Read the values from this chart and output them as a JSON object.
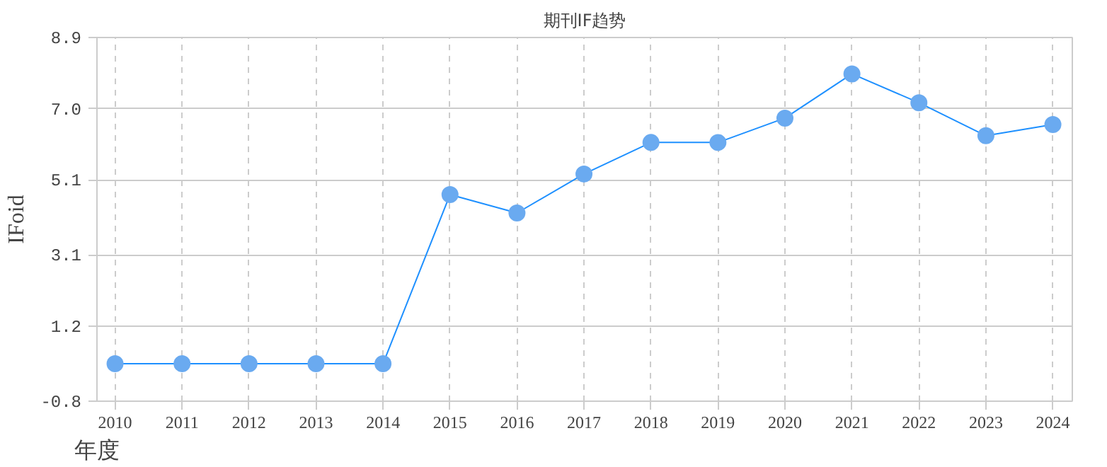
{
  "chart_data": {
    "type": "line",
    "title": "期刊IF趋势",
    "xlabel": "年度",
    "ylabel": "IFoid",
    "categories": [
      "2010",
      "2011",
      "2012",
      "2013",
      "2014",
      "2015",
      "2016",
      "2017",
      "2018",
      "2019",
      "2020",
      "2021",
      "2022",
      "2023",
      "2024"
    ],
    "series": [
      {
        "color": "#1e90ff",
        "values": [
          0.2,
          0.2,
          0.2,
          0.2,
          0.2,
          4.71,
          4.22,
          5.26,
          6.1,
          6.1,
          6.75,
          7.93,
          7.16,
          6.28,
          6.58
        ]
      }
    ],
    "ylim": [
      -0.8,
      8.9
    ],
    "yticks": [
      -0.8,
      1.2,
      3.1,
      5.1,
      {
        "value": 7.0,
        "label": "7.0"
      },
      8.9
    ],
    "grid": true,
    "marker": "circle",
    "line_style": "solid"
  }
}
